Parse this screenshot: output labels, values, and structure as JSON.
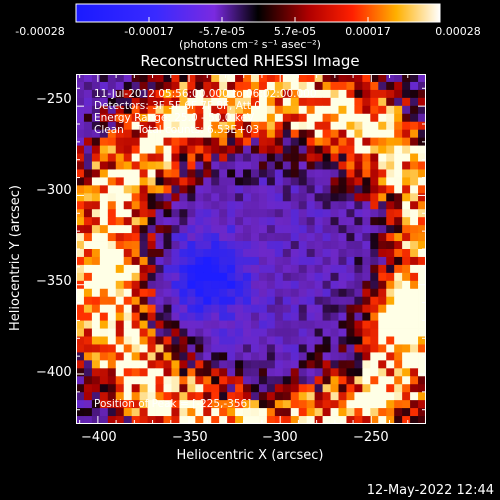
{
  "colorbar": {
    "ticks": [
      "-0.00028",
      "-0.00017",
      "-5.7e-05",
      "5.7e-05",
      "0.00017",
      "0.00028"
    ],
    "units_label": "(photons cm⁻² s⁻¹ asec⁻²)"
  },
  "chart_data": {
    "type": "heatmap",
    "title": "Reconstructed RHESSI Image",
    "xlabel": "Heliocentric X (arcsec)",
    "ylabel": "Heliocentric Y (arcsec)",
    "xlim": [
      -412,
      -220
    ],
    "ylim": [
      -428,
      -232
    ],
    "xticks": [
      -400,
      -350,
      -300,
      -250
    ],
    "yticks": [
      -250,
      -300,
      -350,
      -400
    ],
    "xtick_labels": [
      "−400",
      "−350",
      "−300",
      "−250"
    ],
    "ytick_labels": [
      "−250",
      "−300",
      "−350",
      "−400"
    ],
    "color_range": [
      -0.00028,
      0.00028
    ],
    "peak_position": [
      -225,
      -356
    ],
    "annotations": {
      "time": "11-Jul-2012 05:56:00.000 to 06:02:00.000",
      "detectors": "Detectors: 3F 5F 6F 7F 8F, Att 0",
      "energy": "Energy Range: 25.0 - 50.0 keV",
      "clean": "Clean    Total counts: 6.53E+03",
      "peak": "Position of Peak = [-225,-356]"
    }
  },
  "footer": {
    "timestamp": "12-May-2022 12:44"
  }
}
